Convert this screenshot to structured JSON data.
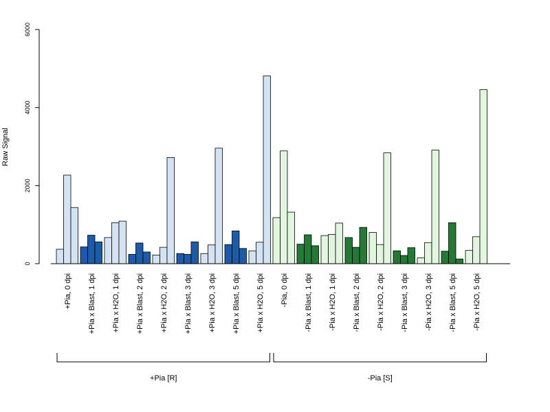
{
  "chart_data": {
    "type": "bar",
    "ylabel": "Raw Signal",
    "ylim": [
      0,
      6000
    ],
    "yticks": [
      0,
      2000,
      4000,
      6000
    ],
    "colors": {
      "light_blue": "#d4e3f4",
      "dark_blue": "#1f5aa6",
      "light_green": "#e2f5de",
      "dark_green": "#237a35"
    },
    "categories": [
      {
        "label": "+Pia, 0 dpi",
        "values": [
          370,
          2270,
          1440
        ],
        "color": "light_blue"
      },
      {
        "label": "+Pia x Blast, 1 dpi",
        "values": [
          430,
          730,
          560
        ],
        "color": "dark_blue"
      },
      {
        "label": "+Pia x H2O, 1 dpi",
        "values": [
          670,
          1050,
          1090
        ],
        "color": "light_blue"
      },
      {
        "label": "+Pia x Blast, 2 dpi",
        "values": [
          240,
          530,
          300
        ],
        "color": "dark_blue"
      },
      {
        "label": "+Pia x H2O, 2 dpi",
        "values": [
          220,
          420,
          2720
        ],
        "color": "light_blue"
      },
      {
        "label": "+Pia x Blast, 3 dpi",
        "values": [
          260,
          240,
          560
        ],
        "color": "dark_blue"
      },
      {
        "label": "+Pia x H2O, 3 dpi",
        "values": [
          260,
          480,
          2960
        ],
        "color": "light_blue"
      },
      {
        "label": "+Pia x Blast, 5 dpi",
        "values": [
          490,
          840,
          390
        ],
        "color": "dark_blue"
      },
      {
        "label": "+Pia x H2O, 5 dpi",
        "values": [
          330,
          550,
          4810
        ],
        "color": "light_blue"
      },
      {
        "label": "-Pia, 0 dpi",
        "values": [
          1180,
          2890,
          1320
        ],
        "color": "light_green"
      },
      {
        "label": "-Pia x Blast, 1 dpi",
        "values": [
          500,
          740,
          460
        ],
        "color": "dark_green"
      },
      {
        "label": "-Pia x H2O, 1 dpi",
        "values": [
          720,
          750,
          1040
        ],
        "color": "light_green"
      },
      {
        "label": "-Pia x Blast, 2 dpi",
        "values": [
          670,
          420,
          930
        ],
        "color": "dark_green"
      },
      {
        "label": "-Pia x H2O, 2 dpi",
        "values": [
          800,
          490,
          2840
        ],
        "color": "light_green"
      },
      {
        "label": "-Pia x Blast, 3 dpi",
        "values": [
          330,
          210,
          410
        ],
        "color": "dark_green"
      },
      {
        "label": "-Pia x H2O, 3 dpi",
        "values": [
          150,
          540,
          2910
        ],
        "color": "light_green"
      },
      {
        "label": "-Pia x Blast, 5 dpi",
        "values": [
          320,
          1050,
          120
        ],
        "color": "dark_green"
      },
      {
        "label": "-Pia x H2O, 5 dpi",
        "values": [
          340,
          690,
          4460
        ],
        "color": "light_green"
      }
    ],
    "groups": [
      {
        "label": "+Pia [R]",
        "from": 0,
        "to": 8
      },
      {
        "label": "-Pia [S]",
        "from": 9,
        "to": 17
      }
    ]
  }
}
